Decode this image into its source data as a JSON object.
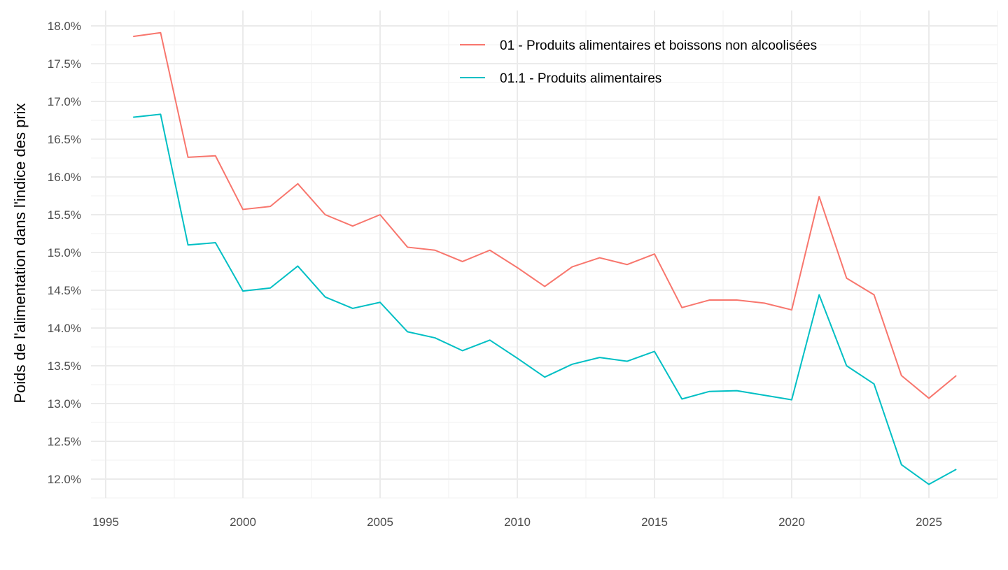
{
  "chart_data": {
    "type": "line",
    "title": "",
    "xlabel": "",
    "ylabel": "Poids de l'alimentation dans l'indice des prix",
    "xlim": [
      1994.5,
      2027.5
    ],
    "ylim": [
      11.72,
      18.2
    ],
    "x_ticks": [
      1995,
      2000,
      2005,
      2010,
      2015,
      2020,
      2025
    ],
    "x_tick_labels": [
      "1995",
      "2000",
      "2005",
      "2010",
      "2015",
      "2020",
      "2025"
    ],
    "y_ticks": [
      12.0,
      12.5,
      13.0,
      13.5,
      14.0,
      14.5,
      15.0,
      15.5,
      16.0,
      16.5,
      17.0,
      17.5,
      18.0
    ],
    "y_tick_labels": [
      "12.0%",
      "12.5%",
      "13.0%",
      "13.5%",
      "14.0%",
      "14.5%",
      "15.0%",
      "15.5%",
      "16.0%",
      "16.5%",
      "17.0%",
      "17.5%",
      "18.0%"
    ],
    "grid": true,
    "legend_position": "top-right",
    "x": [
      1996,
      1997,
      1998,
      1999,
      2000,
      2001,
      2002,
      2003,
      2004,
      2005,
      2006,
      2007,
      2008,
      2009,
      2010,
      2011,
      2012,
      2013,
      2014,
      2015,
      2016,
      2017,
      2018,
      2019,
      2020,
      2021,
      2022,
      2023,
      2024,
      2025,
      2026
    ],
    "series": [
      {
        "name": "01 - Produits alimentaires et boissons non alcoolisées",
        "color": "#F8766D",
        "values": [
          17.86,
          17.91,
          16.26,
          16.28,
          15.57,
          15.61,
          15.91,
          15.5,
          15.35,
          15.5,
          15.07,
          15.03,
          14.88,
          15.03,
          14.8,
          14.55,
          14.81,
          14.93,
          14.84,
          14.98,
          14.27,
          14.37,
          14.37,
          14.33,
          14.24,
          15.74,
          14.66,
          14.44,
          13.37,
          13.07,
          13.37
        ]
      },
      {
        "name": "01.1 - Produits alimentaires",
        "color": "#00BFC4",
        "values": [
          16.79,
          16.83,
          15.1,
          15.13,
          14.49,
          14.53,
          14.82,
          14.41,
          14.26,
          14.34,
          13.95,
          13.87,
          13.7,
          13.84,
          13.6,
          13.35,
          13.52,
          13.61,
          13.56,
          13.69,
          13.06,
          13.16,
          13.17,
          13.11,
          13.05,
          14.44,
          13.5,
          13.26,
          12.19,
          11.93,
          12.13
        ]
      }
    ]
  }
}
